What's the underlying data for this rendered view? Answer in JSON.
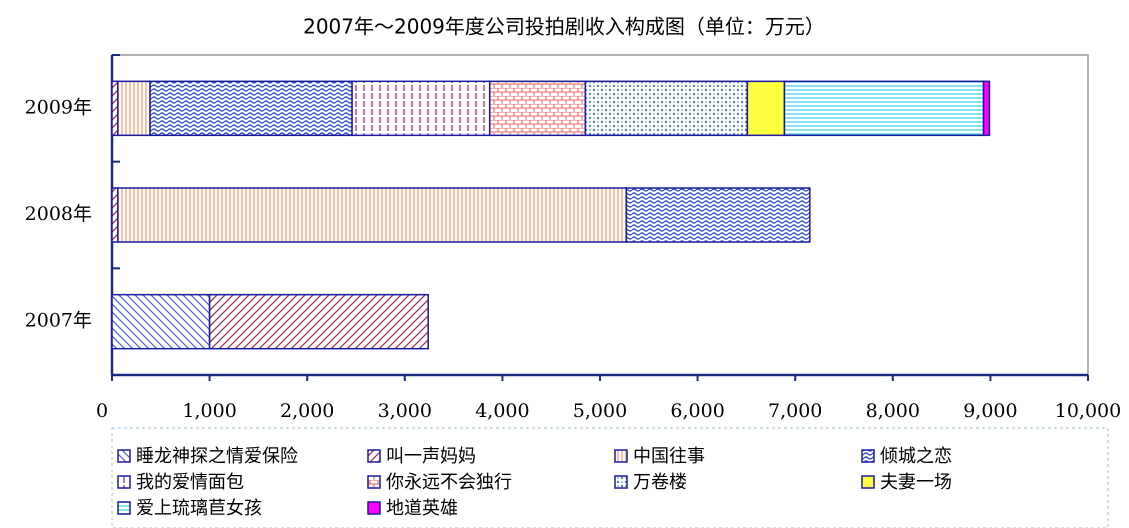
{
  "chart_data": {
    "type": "stacked-barh",
    "title": "2007年～2009年度公司投拍剧收入构成图（单位：万元）",
    "categories": [
      "2007年",
      "2008年",
      "2009年"
    ],
    "series": [
      {
        "name": "睡龙神探之情爱保险",
        "color": "#5566dd",
        "values": [
          1000,
          0,
          0
        ]
      },
      {
        "name": "叫一声妈妈",
        "color": "#a03050",
        "values": [
          2240,
          60,
          60
        ]
      },
      {
        "name": "中国往事",
        "color": "#f0a070",
        "values": [
          0,
          5210,
          330
        ]
      },
      {
        "name": "倾城之恋",
        "color": "#3050d0",
        "values": [
          0,
          1880,
          2070
        ]
      },
      {
        "name": "我的爱情面包",
        "color": "#a03080",
        "values": [
          0,
          0,
          1410
        ]
      },
      {
        "name": "你永远不会独行",
        "color": "#f08080",
        "values": [
          0,
          0,
          980
        ]
      },
      {
        "name": "万卷楼",
        "color": "#5080c0",
        "values": [
          0,
          0,
          1660
        ]
      },
      {
        "name": "夫妻一场",
        "color": "#ffff40",
        "values": [
          0,
          0,
          380
        ]
      },
      {
        "name": "爱上琉璃苣女孩",
        "color": "#40d0e0",
        "values": [
          0,
          0,
          2040
        ]
      },
      {
        "name": "地道英雄",
        "color": "#ff00ff",
        "values": [
          0,
          0,
          60
        ]
      }
    ],
    "xlim": [
      0,
      10000
    ],
    "xticks": [
      0,
      {
        "value": 1000,
        "label": "1,000"
      },
      {
        "value": 2000,
        "label": "2,000"
      },
      {
        "value": 3000,
        "label": "3,000"
      },
      {
        "value": 4000,
        "label": "4,000"
      },
      {
        "value": 5000,
        "label": "5,000"
      },
      {
        "value": 6000,
        "label": "6,000"
      },
      {
        "value": 7000,
        "label": "7,000"
      },
      {
        "value": 8000,
        "label": "8,000"
      },
      {
        "value": 9000,
        "label": "9,000"
      },
      {
        "value": 10000,
        "label": "10,000"
      }
    ]
  }
}
